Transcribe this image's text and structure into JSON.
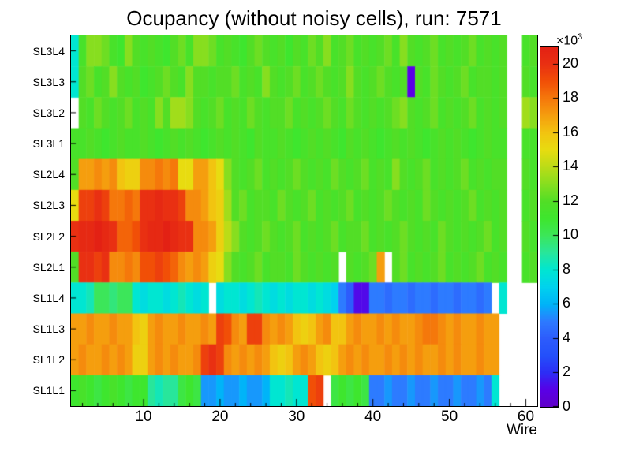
{
  "header": {
    "title": "Ocupancy (without noisy cells), run: 7571"
  },
  "chart_data": {
    "type": "heatmap",
    "title": "Ocupancy (without noisy cells), run: 7571",
    "xlabel": "Wire",
    "ylabel": "",
    "grid": false,
    "legend_position": "right",
    "x_range": [
      0.5,
      61.5
    ],
    "n_wires": 61,
    "x_ticks": [
      10,
      20,
      30,
      40,
      50,
      60
    ],
    "rows": [
      "SL3L4",
      "SL3L3",
      "SL3L2",
      "SL3L1",
      "SL2L4",
      "SL2L3",
      "SL2L2",
      "SL2L1",
      "SL1L4",
      "SL1L3",
      "SL1L2",
      "SL1L1"
    ],
    "values_unit": "counts x 10^3 (null = empty bin)",
    "z_min": 0,
    "z_max": 21,
    "z_ticks": [
      0,
      2,
      4,
      6,
      8,
      10,
      12,
      14,
      16,
      18,
      20
    ],
    "z_scale_label": {
      "base": "×10",
      "exp": "3"
    },
    "frame_color": "#000000",
    "text_color": "#000000",
    "background": "#ffffff",
    "palette": [
      {
        "v": 0,
        "c": "#6000c8"
      },
      {
        "v": 1,
        "c": "#5a00e6"
      },
      {
        "v": 2,
        "c": "#2d2df5"
      },
      {
        "v": 3,
        "c": "#2450fa"
      },
      {
        "v": 4,
        "c": "#2d5cfc"
      },
      {
        "v": 5,
        "c": "#2d7bff"
      },
      {
        "v": 6,
        "c": "#00b4f8"
      },
      {
        "v": 7,
        "c": "#00d2ee"
      },
      {
        "v": 8,
        "c": "#00e6d2"
      },
      {
        "v": 9,
        "c": "#28e69b"
      },
      {
        "v": 10,
        "c": "#3ce65a"
      },
      {
        "v": 11,
        "c": "#3ee62e"
      },
      {
        "v": 12,
        "c": "#52de26"
      },
      {
        "v": 13,
        "c": "#87de1f"
      },
      {
        "v": 14,
        "c": "#bbdc17"
      },
      {
        "v": 15,
        "c": "#e8dc10"
      },
      {
        "v": 16,
        "c": "#f2c410"
      },
      {
        "v": 17,
        "c": "#f59e0e"
      },
      {
        "v": 18,
        "c": "#f5780b"
      },
      {
        "v": 19,
        "c": "#f14f07"
      },
      {
        "v": 20,
        "c": "#e93012"
      },
      {
        "v": 21,
        "c": "#e32114"
      }
    ],
    "values": [
      [
        8,
        11.5,
        13,
        13,
        12.5,
        11.5,
        11,
        13,
        12,
        11.5,
        12,
        11.5,
        11,
        12,
        12.5,
        11.5,
        13,
        13,
        12.5,
        11.5,
        12,
        11.5,
        11,
        12,
        12.5,
        12,
        11.5,
        12,
        11,
        12,
        11.5,
        12.5,
        12,
        13,
        11.5,
        12,
        12.5,
        11.5,
        12,
        11.5,
        12,
        12.5,
        11.5,
        13,
        12,
        11.5,
        12,
        12.5,
        11.5,
        12,
        11.5,
        12,
        12.5,
        11.5,
        12,
        11.5,
        12,
        null,
        null,
        11.5,
        12
      ],
      [
        8,
        12,
        12.5,
        11.5,
        12,
        13,
        12,
        11.5,
        12,
        11,
        11.5,
        12,
        12.5,
        12,
        11.5,
        13,
        12,
        12,
        11.5,
        12,
        12,
        12.5,
        11.5,
        12,
        11.5,
        13,
        12,
        11.5,
        12,
        12.5,
        11.5,
        12,
        12.5,
        12,
        11.5,
        12,
        13,
        12,
        11.5,
        12,
        12.5,
        12,
        11.5,
        12,
        1,
        12,
        11.5,
        12.5,
        12,
        11.5,
        12,
        12.5,
        11.5,
        12,
        12,
        11.5,
        12,
        null,
        null,
        12,
        11.5
      ],
      [
        null,
        12,
        11.5,
        12.5,
        12,
        11.5,
        12,
        12.5,
        11.5,
        12,
        11.5,
        13,
        12,
        13.5,
        13.5,
        13,
        12,
        11.5,
        12,
        12.5,
        11.5,
        12,
        11.5,
        12.5,
        12,
        11.5,
        12,
        12,
        12.5,
        11.5,
        12,
        11.5,
        12,
        12.5,
        12,
        11.5,
        12.5,
        12,
        11.5,
        12,
        11.5,
        12,
        12.5,
        13,
        12,
        11.5,
        12,
        12.5,
        11.5,
        12,
        11.5,
        12,
        12.5,
        11.5,
        12,
        11.5,
        12,
        null,
        null,
        13.5,
        13
      ],
      [
        11.5,
        11.5,
        12,
        11.5,
        11,
        11.5,
        12,
        11.5,
        11.5,
        12,
        11.5,
        11,
        11.5,
        12,
        11.5,
        12,
        11.5,
        11,
        11.5,
        12,
        11.5,
        12,
        11.5,
        11,
        12,
        11.5,
        11.5,
        12,
        11.5,
        11,
        11.5,
        12,
        11.5,
        12,
        11.5,
        11,
        12,
        11.5,
        12,
        11.5,
        11,
        11.5,
        12,
        11.5,
        12,
        11.5,
        11,
        11.5,
        12,
        11.5,
        12,
        11.5,
        11,
        11.5,
        12,
        11.5,
        11.5,
        null,
        null,
        11.5,
        11.5
      ],
      [
        12,
        17,
        17,
        17.5,
        17,
        17.5,
        16,
        15.5,
        15.5,
        17.5,
        17.5,
        18,
        17.5,
        18,
        15,
        15,
        17,
        17,
        16,
        15,
        13,
        12,
        11.5,
        12,
        12.5,
        11.5,
        12,
        11.5,
        12,
        12.5,
        12,
        11.5,
        12,
        11.5,
        12.5,
        12,
        11.5,
        12,
        12.5,
        11.5,
        12,
        11.5,
        13,
        12,
        11.5,
        12,
        12.5,
        11.5,
        12,
        11.5,
        12,
        12.5,
        11.5,
        12,
        11.5,
        12,
        12,
        null,
        null,
        12,
        11.5
      ],
      [
        15,
        19.5,
        19.5,
        20,
        19.5,
        18,
        18,
        18.5,
        18,
        20,
        20,
        20.5,
        20,
        20,
        19.5,
        17.5,
        17.5,
        17,
        16,
        15.5,
        13.5,
        12,
        12.5,
        11.5,
        12,
        12,
        11.5,
        12.5,
        12,
        11.5,
        12,
        12.5,
        11.5,
        12,
        11.5,
        12,
        12.5,
        11.5,
        12,
        11.5,
        12,
        12.5,
        12,
        11.5,
        12,
        11.5,
        12.5,
        12,
        11.5,
        12,
        11.5,
        12,
        12.5,
        11.5,
        12,
        11.5,
        12,
        null,
        null,
        11.5,
        12
      ],
      [
        20,
        20.5,
        20.5,
        21,
        20.5,
        20,
        18.5,
        18.5,
        19,
        20,
        20.5,
        20.5,
        21,
        20.5,
        20,
        20,
        17.5,
        17.5,
        17,
        15.5,
        14,
        13,
        12,
        11.5,
        12,
        12.5,
        12,
        11.5,
        12,
        12.5,
        11.5,
        12,
        11.5,
        12,
        12.5,
        11.5,
        12,
        12,
        12.5,
        11.5,
        12,
        11.5,
        12,
        12.5,
        12,
        11.5,
        12,
        11.5,
        12.5,
        12,
        11.5,
        12,
        11.5,
        12,
        12.5,
        11.5,
        12,
        null,
        null,
        12,
        11.5
      ],
      [
        12,
        20,
        20,
        19.5,
        20,
        17.5,
        17.5,
        18,
        17.5,
        19,
        19,
        19.5,
        19,
        18.5,
        17.5,
        17,
        17.5,
        17,
        15.5,
        15,
        13,
        12,
        11.5,
        12,
        12.5,
        11.5,
        12,
        12,
        11.5,
        12.5,
        12,
        11.5,
        12,
        11.5,
        12,
        null,
        12,
        11.5,
        12,
        12.5,
        17,
        null,
        12,
        12.5,
        11.5,
        12,
        11.5,
        12,
        12.5,
        11.5,
        12,
        11.5,
        12,
        12.5,
        11.5,
        12,
        11.5,
        null,
        null,
        11.5,
        12
      ],
      [
        8,
        8,
        8.5,
        10,
        10,
        9.5,
        10,
        10,
        8,
        7.5,
        8,
        8,
        7.5,
        8,
        8.5,
        8,
        7.5,
        8,
        null,
        7.5,
        8,
        8,
        7.5,
        8,
        8.5,
        8,
        7.5,
        8,
        7.5,
        8,
        8,
        7.5,
        8,
        7.5,
        7,
        5,
        4,
        1.2,
        1.2,
        5,
        5,
        4.5,
        5,
        5,
        4.5,
        5,
        5,
        4.5,
        5,
        5,
        4.5,
        5,
        5,
        4.5,
        5,
        null,
        8,
        null,
        null,
        null,
        null
      ],
      [
        17,
        17,
        17.5,
        17,
        17,
        17.5,
        17,
        17,
        16,
        15.5,
        17,
        17.5,
        17,
        17,
        17.5,
        17,
        17,
        17.5,
        17,
        19.5,
        19,
        17.5,
        17,
        19.5,
        19.5,
        17.5,
        17,
        17.5,
        17,
        16,
        15.5,
        16,
        17,
        17.5,
        16,
        16,
        17,
        17.5,
        17,
        17,
        17.5,
        17,
        17.5,
        17,
        17,
        17.5,
        18,
        18,
        17.5,
        17,
        17.5,
        17,
        17,
        17.5,
        17,
        17,
        null,
        null,
        null,
        null,
        null
      ],
      [
        17,
        17.5,
        17,
        17,
        17.5,
        17,
        17.5,
        17,
        15.5,
        15.5,
        17,
        17.5,
        17,
        17.5,
        17,
        17,
        17.5,
        19.5,
        20,
        19.5,
        17.5,
        17,
        17.5,
        17,
        17.5,
        17,
        16,
        15.5,
        16,
        17,
        17.5,
        17,
        16,
        15.5,
        16,
        17,
        17.5,
        17,
        17.5,
        17,
        17,
        17.5,
        17,
        17.5,
        17,
        17.5,
        17,
        17,
        17.5,
        17,
        17.5,
        17,
        17,
        17.5,
        17,
        17,
        null,
        null,
        null,
        null,
        null
      ],
      [
        11,
        11.5,
        11,
        10.5,
        11,
        11.5,
        11,
        10.5,
        11,
        11,
        9,
        8.5,
        9,
        9,
        10.5,
        11,
        10.5,
        5.5,
        5.5,
        6,
        5.5,
        5.5,
        6,
        5.5,
        5.5,
        6,
        8,
        8,
        8.5,
        8,
        8,
        19,
        19.5,
        null,
        10.5,
        11,
        10.5,
        11,
        10.5,
        5,
        5,
        5.5,
        5,
        5,
        5.5,
        5,
        5,
        5.5,
        5,
        5,
        5.5,
        5,
        5,
        5.5,
        5,
        8,
        null,
        null,
        null,
        null,
        null
      ]
    ]
  }
}
